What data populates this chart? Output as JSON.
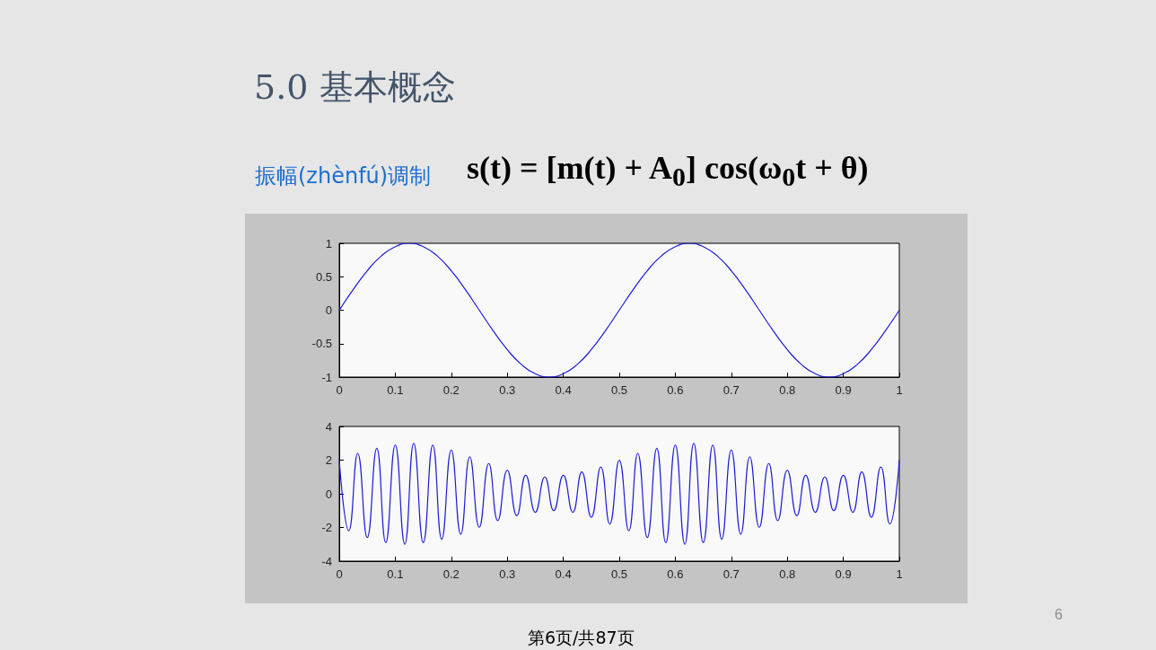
{
  "chart_data": [
    {
      "type": "line",
      "title": "5.0  基本概念",
      "annotations": [
        "振幅(zhènfú)调制",
        "s(t) = [m(t) + A$_{0}$] cos(ω$_{0}$t + θ)"
      ],
      "xlim": [
        0,
        1
      ],
      "xticks": [
        0,
        0.1,
        0.2,
        0.3,
        0.4,
        0.5,
        0.6,
        0.7,
        0.8,
        0.9,
        1
      ],
      "ylim": [
        -1,
        1
      ],
      "yticks": [
        -1,
        -0.5,
        0,
        0.5,
        1
      ],
      "grid": false,
      "marker": "none",
      "line_style": "solid",
      "x": [
        0,
        0.025,
        0.05,
        0.075,
        0.1,
        0.125,
        0.15,
        0.175,
        0.2,
        0.225,
        0.25,
        0.275,
        0.3,
        0.325,
        0.35,
        0.375,
        0.4,
        0.425,
        0.45,
        0.475,
        0.5,
        0.525,
        0.55,
        0.575,
        0.6,
        0.625,
        0.65,
        0.675,
        0.7,
        0.725,
        0.75,
        0.775,
        0.8,
        0.825,
        0.85,
        0.875,
        0.9,
        0.925,
        0.95,
        0.975,
        1
      ],
      "series": [
        {
          "color": "#1c1cd6",
          "values": [
            0,
            0.31,
            0.59,
            0.81,
            0.95,
            1,
            0.95,
            0.81,
            0.59,
            0.31,
            0,
            -0.31,
            -0.59,
            -0.81,
            -0.95,
            -1,
            -0.95,
            -0.81,
            -0.59,
            -0.31,
            0,
            0.31,
            0.59,
            0.81,
            0.95,
            1,
            0.95,
            0.81,
            0.59,
            0.31,
            0,
            -0.31,
            -0.59,
            -0.81,
            -0.95,
            -1,
            -0.95,
            -0.81,
            -0.59,
            -0.31,
            0
          ]
        }
      ]
    },
    {
      "type": "line",
      "annotations": [
        "6",
        "第6页/共87页"
      ],
      "xlim": [
        0,
        1
      ],
      "xticks": [
        0,
        0.1,
        0.2,
        0.3,
        0.4,
        0.5,
        0.6,
        0.7,
        0.8,
        0.9,
        1
      ],
      "ylim": [
        -4,
        4
      ],
      "yticks": [
        -4,
        -2,
        0,
        2,
        4
      ],
      "grid": false,
      "marker": "none",
      "line_style": "solid",
      "x": [
        0,
        0.017,
        0.033,
        0.05,
        0.067,
        0.083,
        0.1,
        0.117,
        0.133,
        0.15,
        0.167,
        0.183,
        0.2,
        0.217,
        0.233,
        0.25,
        0.267,
        0.283,
        0.3,
        0.317,
        0.333,
        0.35,
        0.367,
        0.383,
        0.4,
        0.417,
        0.433,
        0.45,
        0.467,
        0.483,
        0.5,
        0.517,
        0.533,
        0.55,
        0.567,
        0.583,
        0.6,
        0.617,
        0.633,
        0.65,
        0.667,
        0.683,
        0.7,
        0.717,
        0.733,
        0.75,
        0.767,
        0.783,
        0.8,
        0.817,
        0.833,
        0.85,
        0.867,
        0.883,
        0.9,
        0.917,
        0.933,
        0.95,
        0.967,
        0.983,
        1
      ],
      "series": [
        {
          "color": "#1c1cd6",
          "values": [
            2,
            -2.2,
            2.4,
            -2.6,
            2.7,
            -2.9,
            2.9,
            -3,
            3,
            -2.9,
            2.9,
            -2.7,
            2.6,
            -2.4,
            2.2,
            -2,
            1.8,
            -1.6,
            1.4,
            -1.3,
            1.1,
            -1.1,
            1,
            -1,
            1.1,
            -1.1,
            1.3,
            -1.4,
            1.6,
            -1.8,
            2,
            -2.2,
            2.4,
            -2.6,
            2.7,
            -2.9,
            2.9,
            -3,
            3,
            -2.9,
            2.9,
            -2.7,
            2.6,
            -2.4,
            2.2,
            -2,
            1.8,
            -1.6,
            1.4,
            -1.3,
            1.1,
            -1.1,
            1,
            -1,
            1.1,
            -1.1,
            1.3,
            -1.4,
            1.6,
            -1.8,
            2
          ]
        }
      ]
    }
  ]
}
